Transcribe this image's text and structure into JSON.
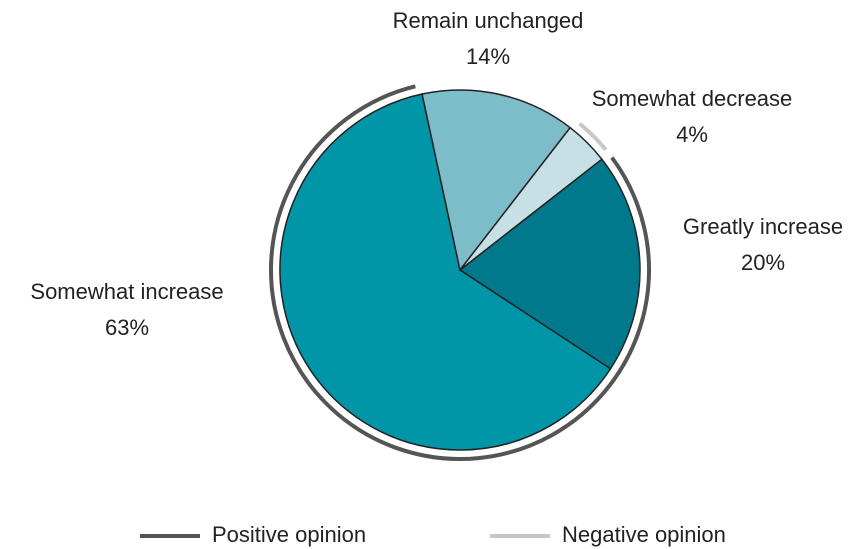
{
  "chart_data": {
    "type": "pie",
    "categories": [
      "Greatly increase",
      "Somewhat increase",
      "Remain unchanged",
      "Somewhat decrease"
    ],
    "values": [
      20,
      63,
      14,
      4
    ],
    "value_labels": [
      "20%",
      "63%",
      "14%",
      "4%"
    ],
    "colors": [
      "#00798d",
      "#0096a8",
      "#7dbdc9",
      "#c6e0e6"
    ],
    "groups": [
      {
        "name": "Positive opinion",
        "color": "#555555",
        "slices": [
          0,
          1
        ]
      },
      {
        "name": "Negative opinion",
        "color": "#c8c8c8",
        "slices": [
          3
        ]
      }
    ]
  }
}
